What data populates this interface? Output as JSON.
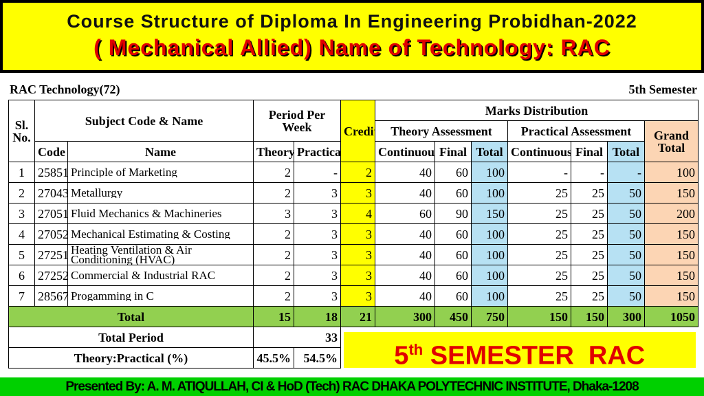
{
  "header": {
    "title": "Course Structure of Diploma In Engineering Probidhan-2022",
    "subtitle": "( Mechanical Allied) Name of Technology: RAC"
  },
  "info": {
    "technology": "RAC Technology(72)",
    "semester": "5th Semester"
  },
  "table": {
    "headers": {
      "sl": "Sl. No.",
      "subject": "Subject Code & Name",
      "period": "Period Per Week",
      "credit": "Credit",
      "marks": "Marks Distribution",
      "theory_assessment": "Theory Assessment",
      "practical_assessment": "Practical Assessment",
      "grand_total": "Grand Total"
    },
    "columns": [
      "Code",
      "Name",
      "Theory",
      "Practical",
      "Continuous",
      "Final",
      "Total",
      "Continuous",
      "Final",
      "Total"
    ],
    "rows": [
      [
        1,
        25851,
        "Principle of Marketing",
        2,
        "-",
        2,
        40,
        60,
        100,
        "-",
        "-",
        "-",
        100
      ],
      [
        2,
        27043,
        "Metallurgy",
        2,
        3,
        3,
        40,
        60,
        100,
        25,
        25,
        50,
        150
      ],
      [
        3,
        27051,
        "Fluid Mechanics & Machineries",
        3,
        3,
        4,
        60,
        90,
        150,
        25,
        25,
        50,
        200
      ],
      [
        4,
        27052,
        "Mechanical Estimating & Costing",
        2,
        3,
        3,
        40,
        60,
        100,
        25,
        25,
        50,
        150
      ],
      [
        5,
        27251,
        "Heating Ventilation & Air Conditioning (HVAC)",
        2,
        3,
        3,
        40,
        60,
        100,
        25,
        25,
        50,
        150
      ],
      [
        6,
        27252,
        "Commercial & Industrial RAC",
        2,
        3,
        3,
        40,
        60,
        100,
        25,
        25,
        50,
        150
      ],
      [
        7,
        28567,
        "Progamming  in C",
        2,
        3,
        3,
        40,
        60,
        100,
        25,
        25,
        50,
        150
      ]
    ],
    "total": {
      "label": "Total",
      "values": [
        15,
        18,
        21,
        300,
        450,
        750,
        150,
        150,
        300,
        1050
      ]
    },
    "total_period": {
      "label": "Total Period",
      "value": 33
    },
    "ratio": {
      "label": "Theory:Practical (%)",
      "theory": "45.5%",
      "practical": "54.5%"
    }
  },
  "banner": {
    "number": "5",
    "suffix": "th",
    "text": " SEMESTER  RAC"
  },
  "footer": "Presented By: A. M. ATIQULLAH, CI & HoD (Tech) RAC DHAKA POLYTECHNIC INSTITUTE, Dhaka-1208"
}
